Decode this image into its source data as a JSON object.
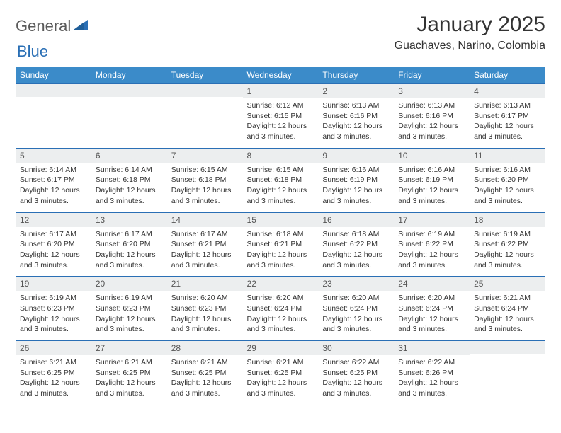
{
  "logo": {
    "text1": "General",
    "text2": "Blue"
  },
  "title": "January 2025",
  "location": "Guachaves, Narino, Colombia",
  "colors": {
    "header_bg": "#3b8bc9",
    "border": "#2a6fb5",
    "band_bg": "#eceeef",
    "text": "#333333",
    "logo_gray": "#5a5a5a",
    "logo_blue": "#2a6fb5"
  },
  "daysOfWeek": [
    "Sunday",
    "Monday",
    "Tuesday",
    "Wednesday",
    "Thursday",
    "Friday",
    "Saturday"
  ],
  "weeks": [
    [
      {
        "n": "",
        "sr": "",
        "ss": "",
        "dl": ""
      },
      {
        "n": "",
        "sr": "",
        "ss": "",
        "dl": ""
      },
      {
        "n": "",
        "sr": "",
        "ss": "",
        "dl": ""
      },
      {
        "n": "1",
        "sr": "Sunrise: 6:12 AM",
        "ss": "Sunset: 6:15 PM",
        "dl": "Daylight: 12 hours and 3 minutes."
      },
      {
        "n": "2",
        "sr": "Sunrise: 6:13 AM",
        "ss": "Sunset: 6:16 PM",
        "dl": "Daylight: 12 hours and 3 minutes."
      },
      {
        "n": "3",
        "sr": "Sunrise: 6:13 AM",
        "ss": "Sunset: 6:16 PM",
        "dl": "Daylight: 12 hours and 3 minutes."
      },
      {
        "n": "4",
        "sr": "Sunrise: 6:13 AM",
        "ss": "Sunset: 6:17 PM",
        "dl": "Daylight: 12 hours and 3 minutes."
      }
    ],
    [
      {
        "n": "5",
        "sr": "Sunrise: 6:14 AM",
        "ss": "Sunset: 6:17 PM",
        "dl": "Daylight: 12 hours and 3 minutes."
      },
      {
        "n": "6",
        "sr": "Sunrise: 6:14 AM",
        "ss": "Sunset: 6:18 PM",
        "dl": "Daylight: 12 hours and 3 minutes."
      },
      {
        "n": "7",
        "sr": "Sunrise: 6:15 AM",
        "ss": "Sunset: 6:18 PM",
        "dl": "Daylight: 12 hours and 3 minutes."
      },
      {
        "n": "8",
        "sr": "Sunrise: 6:15 AM",
        "ss": "Sunset: 6:18 PM",
        "dl": "Daylight: 12 hours and 3 minutes."
      },
      {
        "n": "9",
        "sr": "Sunrise: 6:16 AM",
        "ss": "Sunset: 6:19 PM",
        "dl": "Daylight: 12 hours and 3 minutes."
      },
      {
        "n": "10",
        "sr": "Sunrise: 6:16 AM",
        "ss": "Sunset: 6:19 PM",
        "dl": "Daylight: 12 hours and 3 minutes."
      },
      {
        "n": "11",
        "sr": "Sunrise: 6:16 AM",
        "ss": "Sunset: 6:20 PM",
        "dl": "Daylight: 12 hours and 3 minutes."
      }
    ],
    [
      {
        "n": "12",
        "sr": "Sunrise: 6:17 AM",
        "ss": "Sunset: 6:20 PM",
        "dl": "Daylight: 12 hours and 3 minutes."
      },
      {
        "n": "13",
        "sr": "Sunrise: 6:17 AM",
        "ss": "Sunset: 6:20 PM",
        "dl": "Daylight: 12 hours and 3 minutes."
      },
      {
        "n": "14",
        "sr": "Sunrise: 6:17 AM",
        "ss": "Sunset: 6:21 PM",
        "dl": "Daylight: 12 hours and 3 minutes."
      },
      {
        "n": "15",
        "sr": "Sunrise: 6:18 AM",
        "ss": "Sunset: 6:21 PM",
        "dl": "Daylight: 12 hours and 3 minutes."
      },
      {
        "n": "16",
        "sr": "Sunrise: 6:18 AM",
        "ss": "Sunset: 6:22 PM",
        "dl": "Daylight: 12 hours and 3 minutes."
      },
      {
        "n": "17",
        "sr": "Sunrise: 6:19 AM",
        "ss": "Sunset: 6:22 PM",
        "dl": "Daylight: 12 hours and 3 minutes."
      },
      {
        "n": "18",
        "sr": "Sunrise: 6:19 AM",
        "ss": "Sunset: 6:22 PM",
        "dl": "Daylight: 12 hours and 3 minutes."
      }
    ],
    [
      {
        "n": "19",
        "sr": "Sunrise: 6:19 AM",
        "ss": "Sunset: 6:23 PM",
        "dl": "Daylight: 12 hours and 3 minutes."
      },
      {
        "n": "20",
        "sr": "Sunrise: 6:19 AM",
        "ss": "Sunset: 6:23 PM",
        "dl": "Daylight: 12 hours and 3 minutes."
      },
      {
        "n": "21",
        "sr": "Sunrise: 6:20 AM",
        "ss": "Sunset: 6:23 PM",
        "dl": "Daylight: 12 hours and 3 minutes."
      },
      {
        "n": "22",
        "sr": "Sunrise: 6:20 AM",
        "ss": "Sunset: 6:24 PM",
        "dl": "Daylight: 12 hours and 3 minutes."
      },
      {
        "n": "23",
        "sr": "Sunrise: 6:20 AM",
        "ss": "Sunset: 6:24 PM",
        "dl": "Daylight: 12 hours and 3 minutes."
      },
      {
        "n": "24",
        "sr": "Sunrise: 6:20 AM",
        "ss": "Sunset: 6:24 PM",
        "dl": "Daylight: 12 hours and 3 minutes."
      },
      {
        "n": "25",
        "sr": "Sunrise: 6:21 AM",
        "ss": "Sunset: 6:24 PM",
        "dl": "Daylight: 12 hours and 3 minutes."
      }
    ],
    [
      {
        "n": "26",
        "sr": "Sunrise: 6:21 AM",
        "ss": "Sunset: 6:25 PM",
        "dl": "Daylight: 12 hours and 3 minutes."
      },
      {
        "n": "27",
        "sr": "Sunrise: 6:21 AM",
        "ss": "Sunset: 6:25 PM",
        "dl": "Daylight: 12 hours and 3 minutes."
      },
      {
        "n": "28",
        "sr": "Sunrise: 6:21 AM",
        "ss": "Sunset: 6:25 PM",
        "dl": "Daylight: 12 hours and 3 minutes."
      },
      {
        "n": "29",
        "sr": "Sunrise: 6:21 AM",
        "ss": "Sunset: 6:25 PM",
        "dl": "Daylight: 12 hours and 3 minutes."
      },
      {
        "n": "30",
        "sr": "Sunrise: 6:22 AM",
        "ss": "Sunset: 6:25 PM",
        "dl": "Daylight: 12 hours and 3 minutes."
      },
      {
        "n": "31",
        "sr": "Sunrise: 6:22 AM",
        "ss": "Sunset: 6:26 PM",
        "dl": "Daylight: 12 hours and 3 minutes."
      },
      {
        "n": "",
        "sr": "",
        "ss": "",
        "dl": ""
      }
    ]
  ]
}
